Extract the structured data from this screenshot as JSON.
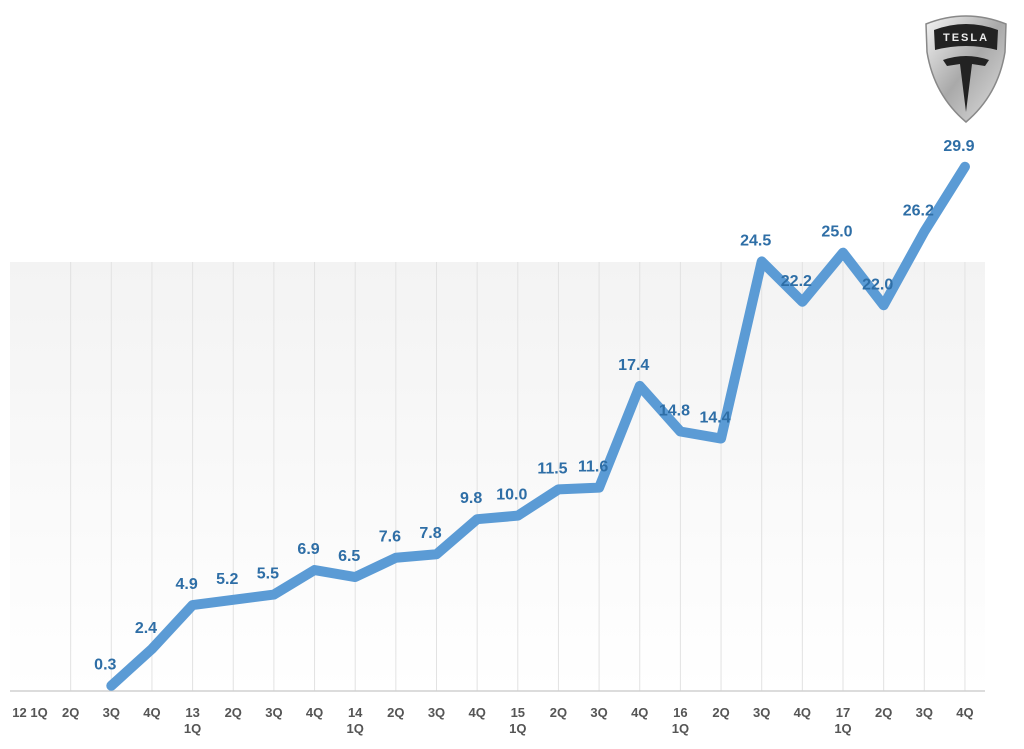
{
  "chart_data": {
    "type": "line",
    "logo": "TESLA",
    "categories": [
      "12 1Q",
      "2Q",
      "3Q",
      "4Q",
      "13\n1Q",
      "2Q",
      "3Q",
      "4Q",
      "14\n1Q",
      "2Q",
      "3Q",
      "4Q",
      "15\n1Q",
      "2Q",
      "3Q",
      "4Q",
      "16\n1Q",
      "2Q",
      "3Q",
      "4Q",
      "17\n1Q",
      "2Q",
      "3Q",
      "4Q"
    ],
    "values": [
      null,
      null,
      0.3,
      2.4,
      4.9,
      5.2,
      5.5,
      6.9,
      6.5,
      7.6,
      7.8,
      9.8,
      10.0,
      11.5,
      11.6,
      17.4,
      14.8,
      14.4,
      24.5,
      22.2,
      25.0,
      22.0,
      26.2,
      29.9
    ],
    "value_labels": [
      null,
      null,
      "0.3",
      "2.4",
      "4.9",
      "5.2",
      "5.5",
      "6.9",
      "6.5",
      "7.6",
      "7.8",
      "9.8",
      "10.0",
      "11.5",
      "11.6",
      "17.4",
      "14.8",
      "14.4",
      "24.5",
      "22.2",
      "25.0",
      "22.0",
      "26.2",
      "29.9"
    ],
    "color": "#5b9bd5",
    "ylim": [
      0,
      30
    ]
  }
}
